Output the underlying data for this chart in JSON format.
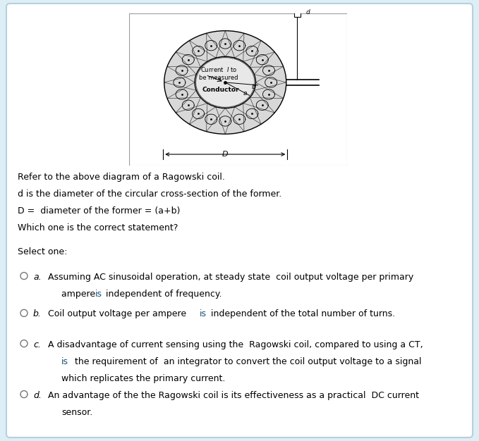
{
  "bg_color": "#ddeef6",
  "card_color": "#ffffff",
  "text_color": "#000000",
  "blue_color": "#1a5276",
  "line1": "Refer to the above diagram of a Ragowski coil.",
  "line2": "d is the diameter of the circular cross-section of the former.",
  "line3": "D =  diameter of the former = (a+b)",
  "line4": "Which one is the correct statement?",
  "select_label": "Select one:",
  "opt_a_line1": "Assuming AC sinusoidal operation, at steady state  coil output voltage per primary",
  "opt_a_line2_pre": "        ampere ",
  "opt_a_is": "is",
  "opt_a_line2_post": " independent of frequency.",
  "opt_b_pre": "Coil output voltage per ampere  ",
  "opt_b_is": "is",
  "opt_b_post": " independent of the total number of turns.",
  "opt_c_line1": "A disadvantage of current sensing using the  Ragowski coil, compared to using a CT,",
  "opt_c_line2_pre": "        ",
  "opt_c_is": "is",
  "opt_c_line2_post": "  the requirement of  an integrator to convert the coil output voltage to a signal",
  "opt_c_line3": "        which replicates the primary current.",
  "opt_d_line1": "An advantage of the the Ragowski coil is its effectiveness as a practical  DC current",
  "opt_d_line2": "        sensor.",
  "font_size": 9.0,
  "label_font_size": 9.0
}
